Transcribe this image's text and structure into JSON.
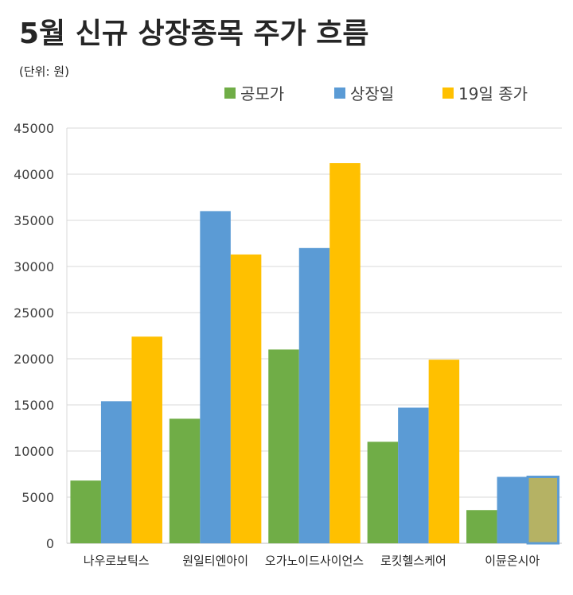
{
  "chart_data": {
    "type": "bar",
    "title": "5월 신규 상장종목 주가 흐름",
    "subtitle": "(단위: 원)",
    "legend_position": "top-right",
    "categories": [
      "나우로보틱스",
      "원일티엔아이",
      "오가노이드사이언스",
      "로킷헬스케어",
      "이뮨온시아"
    ],
    "series": [
      {
        "name": "공모가",
        "color": "#70ad47",
        "values": [
          6800,
          13500,
          21000,
          11000,
          3600
        ]
      },
      {
        "name": "상장일",
        "color": "#5b9bd5",
        "values": [
          15400,
          36000,
          32000,
          14700,
          7200
        ]
      },
      {
        "name": "19일 종가",
        "color": "#ffc000",
        "values": [
          22400,
          31300,
          41200,
          19900,
          7200
        ]
      }
    ],
    "highlight": {
      "category_index": 4,
      "series_index": 2,
      "fill": "#b5b264",
      "border": "#5b9bd5"
    },
    "ylim": [
      0,
      45000
    ],
    "yticks": [
      0,
      5000,
      10000,
      15000,
      20000,
      25000,
      30000,
      35000,
      40000,
      45000
    ],
    "grid": true
  }
}
